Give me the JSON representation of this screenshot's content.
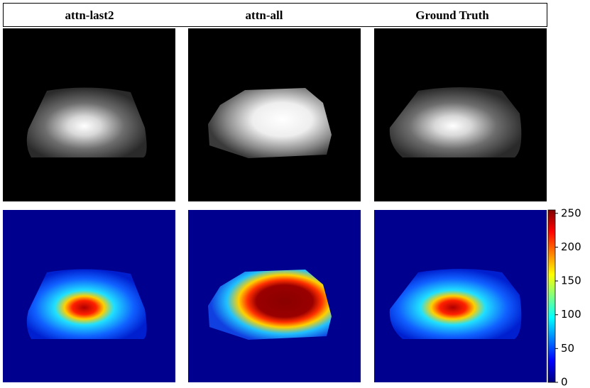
{
  "header": {
    "columns": [
      "attn-last2",
      "attn-all",
      "Ground Truth"
    ]
  },
  "colorbar": {
    "lim": [
      0,
      255
    ],
    "ticks": [
      0,
      50,
      100,
      150,
      200,
      250
    ]
  }
}
